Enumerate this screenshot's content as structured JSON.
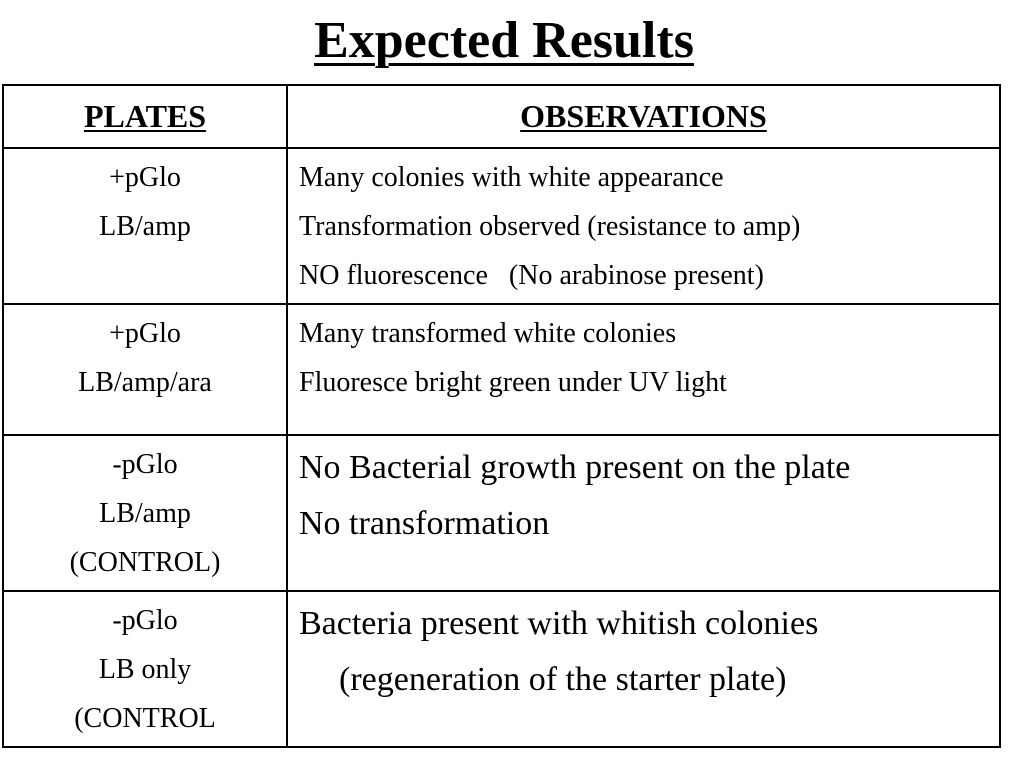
{
  "title": "Expected Results",
  "table": {
    "headers": {
      "plates": "PLATES",
      "observations": "OBSERVATIONS"
    },
    "rows": [
      {
        "plate": [
          "+pGlo",
          "LB/amp"
        ],
        "observations": [
          "Many colonies with white appearance",
          "Transformation observed (resistance to amp)",
          "NO fluorescence   (No arabinose present)"
        ]
      },
      {
        "plate": [
          "+pGlo",
          "LB/amp/ara"
        ],
        "observations": [
          "Many transformed white colonies",
          "Fluoresce bright green under UV light"
        ]
      },
      {
        "plate": [
          "-pGlo",
          "LB/amp",
          "(CONTROL)"
        ],
        "observations": [
          "No Bacterial growth present on the plate",
          "No transformation"
        ]
      },
      {
        "plate": [
          "-pGlo",
          "LB only",
          "(CONTROL"
        ],
        "observations": [
          "Bacteria present with whitish colonies",
          "(regeneration of the starter plate)"
        ]
      }
    ]
  }
}
